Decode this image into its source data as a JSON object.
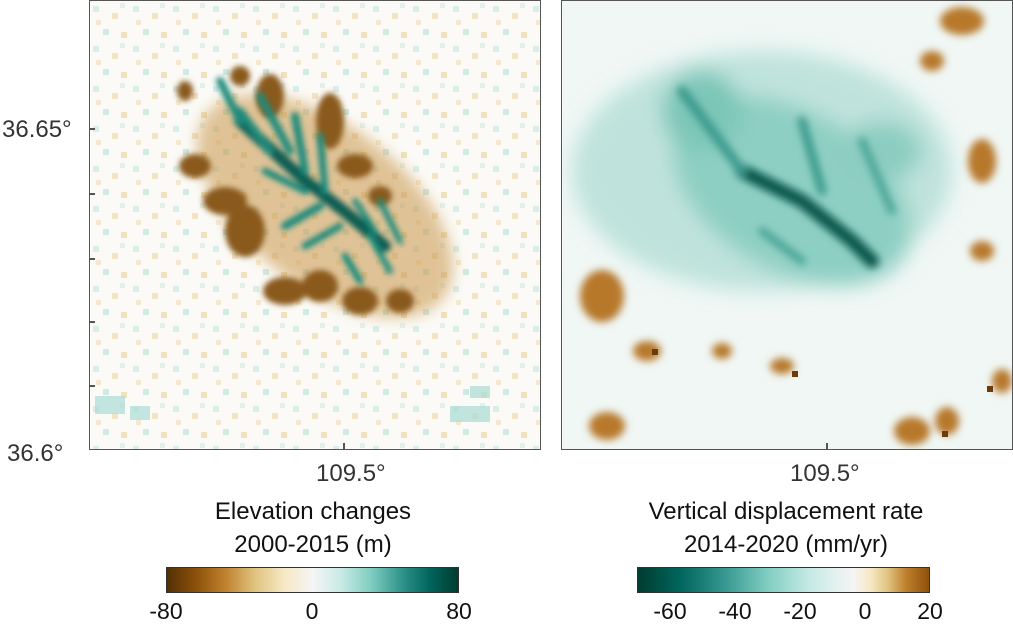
{
  "left_panel": {
    "y_tick_labels": [
      "36.65°",
      "36.6°"
    ],
    "x_tick_label": "109.5°",
    "title_line1": "Elevation changes",
    "title_line2": "2000-2015 (m)",
    "colorbar": {
      "ticks": [
        "-80",
        "0",
        "80"
      ],
      "range": [
        -80,
        80
      ],
      "colors": [
        "#543005",
        "#8c510a",
        "#bf812d",
        "#dfc27d",
        "#f6e8c3",
        "#f5f5f5",
        "#c7eae5",
        "#80cdc1",
        "#35978f",
        "#01665e",
        "#003c30"
      ]
    }
  },
  "right_panel": {
    "x_tick_label": "109.5°",
    "title_line1": "Vertical displacement rate",
    "title_line2": "2014-2020 (mm/yr)",
    "colorbar": {
      "ticks": [
        "-60",
        "-40",
        "-20",
        "0",
        "20"
      ],
      "range": [
        -70,
        20
      ],
      "colors": [
        "#003c30",
        "#01665e",
        "#35978f",
        "#80cdc1",
        "#c7eae5",
        "#f5f5f5",
        "#f6e8c3",
        "#dfc27d",
        "#bf812d",
        "#8c510a"
      ]
    }
  }
}
